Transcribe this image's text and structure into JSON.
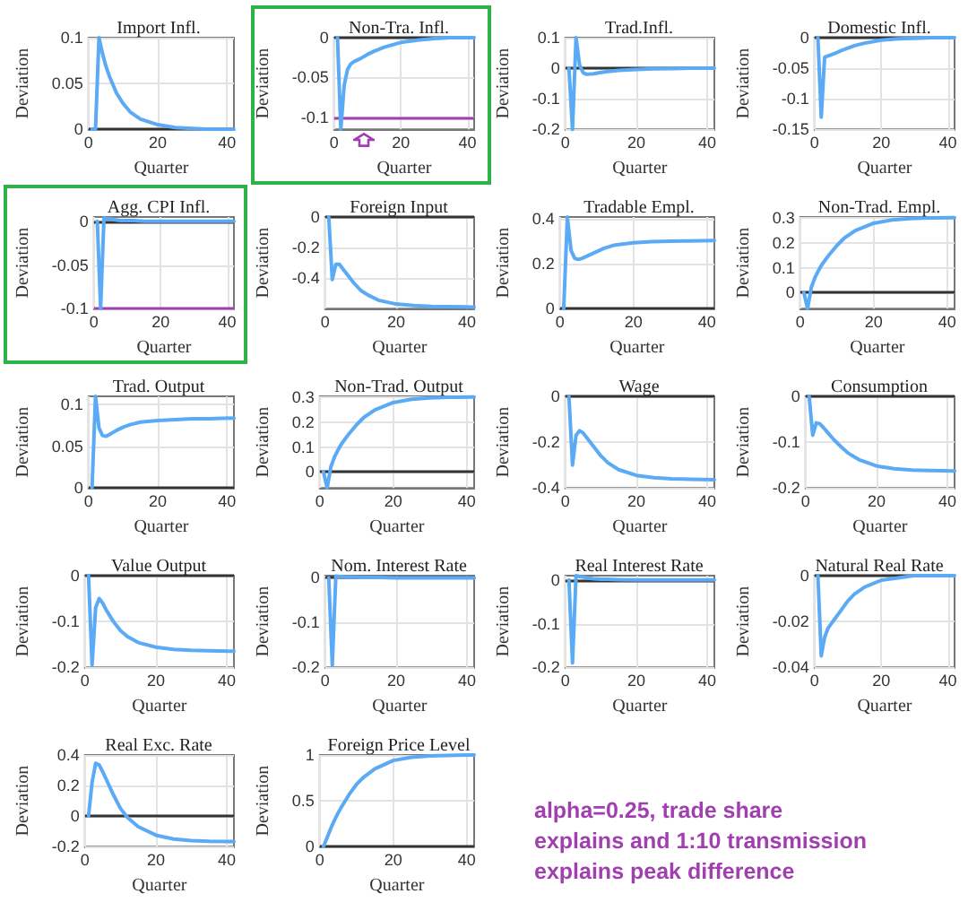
{
  "chart_data": [
    {
      "type": "line",
      "title": "Import Infl.",
      "xlabel": "Quarter",
      "ylabel": "Deviation",
      "x": [
        1,
        2,
        3,
        4,
        5,
        6,
        8,
        10,
        12,
        15,
        20,
        25,
        30,
        35,
        42
      ],
      "xlim": [
        0,
        42
      ],
      "xticks": [
        0,
        20,
        40
      ],
      "ylim": [
        0,
        0.1
      ],
      "yticks": [
        0,
        0.05,
        0.1
      ],
      "grid": true,
      "ref_lines": [
        {
          "axis": "y",
          "value": 0,
          "color": "#333333"
        }
      ],
      "series": [
        {
          "color": "#5aaaf6",
          "values": [
            0,
            0,
            0.1,
            0.083,
            0.069,
            0.058,
            0.04,
            0.028,
            0.019,
            0.011,
            0.005,
            0.002,
            0.001,
            0,
            0
          ]
        }
      ]
    },
    {
      "type": "line",
      "title": "Non-Tra. Infl.",
      "xlabel": "Quarter",
      "ylabel": "Deviation",
      "x": [
        1,
        2,
        3,
        4,
        5,
        6,
        8,
        10,
        12,
        15,
        20,
        25,
        30,
        35,
        42
      ],
      "xlim": [
        0,
        42
      ],
      "xticks": [
        0,
        20,
        40
      ],
      "ylim": [
        -0.115,
        0
      ],
      "yticks": [
        -0.1,
        -0.05,
        0
      ],
      "grid": true,
      "ref_lines": [
        {
          "axis": "y",
          "value": 0,
          "color": "#333333"
        },
        {
          "axis": "y",
          "value": -0.1,
          "color": "#a23fb0"
        }
      ],
      "series": [
        {
          "color": "#5aaaf6",
          "values": [
            0,
            -0.115,
            -0.06,
            -0.04,
            -0.033,
            -0.03,
            -0.026,
            -0.021,
            -0.017,
            -0.012,
            -0.006,
            -0.003,
            -0.001,
            0,
            0
          ]
        }
      ]
    },
    {
      "type": "line",
      "title": "Trad.Infl.",
      "xlabel": "Quarter",
      "ylabel": "Deviation",
      "x": [
        1,
        2,
        3,
        4,
        5,
        6,
        8,
        10,
        12,
        15,
        20,
        25,
        30,
        35,
        42
      ],
      "xlim": [
        0,
        42
      ],
      "xticks": [
        0,
        20,
        40
      ],
      "ylim": [
        -0.2,
        0.1
      ],
      "yticks": [
        -0.2,
        -0.1,
        0,
        0.1
      ],
      "grid": true,
      "ref_lines": [
        {
          "axis": "y",
          "value": 0,
          "color": "#333333"
        }
      ],
      "series": [
        {
          "color": "#5aaaf6",
          "values": [
            0,
            -0.2,
            0.1,
            0.01,
            -0.015,
            -0.02,
            -0.018,
            -0.014,
            -0.011,
            -0.007,
            -0.004,
            -0.002,
            -0.001,
            0,
            0
          ]
        }
      ]
    },
    {
      "type": "line",
      "title": "Domestic Infl.",
      "xlabel": "Quarter",
      "ylabel": "Deviation",
      "x": [
        1,
        2,
        3,
        4,
        5,
        6,
        8,
        10,
        12,
        15,
        20,
        25,
        30,
        35,
        42
      ],
      "xlim": [
        0,
        42
      ],
      "xticks": [
        0,
        20,
        40
      ],
      "ylim": [
        -0.15,
        0
      ],
      "yticks": [
        -0.15,
        -0.1,
        -0.05,
        0
      ],
      "grid": true,
      "ref_lines": [
        {
          "axis": "y",
          "value": 0,
          "color": "#333333"
        }
      ],
      "series": [
        {
          "color": "#5aaaf6",
          "values": [
            0,
            -0.13,
            -0.032,
            -0.03,
            -0.028,
            -0.026,
            -0.021,
            -0.017,
            -0.013,
            -0.009,
            -0.004,
            -0.002,
            -0.001,
            0,
            0
          ]
        }
      ]
    },
    {
      "type": "line",
      "title": "Agg. CPI Infl.",
      "xlabel": "Quarter",
      "ylabel": "Deviation",
      "x": [
        1,
        2,
        3,
        4,
        5,
        6,
        8,
        10,
        12,
        15,
        20,
        25,
        30,
        35,
        42
      ],
      "xlim": [
        0,
        42
      ],
      "xticks": [
        0,
        20,
        40
      ],
      "ylim": [
        -0.1,
        0.005
      ],
      "yticks": [
        -0.1,
        -0.05,
        0
      ],
      "grid": true,
      "ref_lines": [
        {
          "axis": "y",
          "value": 0,
          "color": "#333333"
        },
        {
          "axis": "y",
          "value": -0.1,
          "color": "#a23fb0"
        }
      ],
      "series": [
        {
          "color": "#5aaaf6",
          "values": [
            0,
            -0.1,
            0.004,
            0.003,
            0.003,
            0.002,
            0.001,
            0.001,
            0.001,
            0,
            0,
            0,
            0,
            0,
            0
          ]
        }
      ]
    },
    {
      "type": "line",
      "title": "Foreign Input",
      "xlabel": "Quarter",
      "ylabel": "Deviation",
      "x": [
        1,
        2,
        3,
        4,
        5,
        6,
        8,
        10,
        12,
        15,
        20,
        25,
        30,
        35,
        42
      ],
      "xlim": [
        0,
        42
      ],
      "xticks": [
        0,
        20,
        40
      ],
      "ylim": [
        -0.6,
        0
      ],
      "yticks": [
        -0.4,
        -0.2,
        0
      ],
      "grid": true,
      "ref_lines": [
        {
          "axis": "y",
          "value": 0,
          "color": "#333333"
        }
      ],
      "series": [
        {
          "color": "#5aaaf6",
          "values": [
            0,
            -0.41,
            -0.31,
            -0.31,
            -0.34,
            -0.37,
            -0.43,
            -0.48,
            -0.51,
            -0.545,
            -0.57,
            -0.58,
            -0.585,
            -0.587,
            -0.59
          ]
        }
      ]
    },
    {
      "type": "line",
      "title": "Tradable Empl.",
      "xlabel": "Quarter",
      "ylabel": "Deviation",
      "x": [
        1,
        2,
        3,
        4,
        5,
        6,
        8,
        10,
        12,
        15,
        20,
        25,
        30,
        35,
        42
      ],
      "xlim": [
        0,
        42
      ],
      "xticks": [
        0,
        20,
        40
      ],
      "ylim": [
        0,
        0.41
      ],
      "yticks": [
        0,
        0.2,
        0.4
      ],
      "grid": true,
      "ref_lines": [
        {
          "axis": "y",
          "value": 0,
          "color": "#333333"
        }
      ],
      "series": [
        {
          "color": "#5aaaf6",
          "values": [
            0,
            0.41,
            0.26,
            0.225,
            0.22,
            0.225,
            0.24,
            0.255,
            0.27,
            0.285,
            0.295,
            0.3,
            0.302,
            0.303,
            0.305
          ]
        }
      ]
    },
    {
      "type": "line",
      "title": "Non-Trad. Empl.",
      "xlabel": "Quarter",
      "ylabel": "Deviation",
      "x": [
        1,
        2,
        3,
        4,
        5,
        6,
        8,
        10,
        12,
        15,
        20,
        25,
        30,
        35,
        42
      ],
      "xlim": [
        0,
        42
      ],
      "xticks": [
        0,
        20,
        40
      ],
      "ylim": [
        -0.065,
        0.305
      ],
      "yticks": [
        0,
        0.1,
        0.2,
        0.3
      ],
      "grid": true,
      "ref_lines": [
        {
          "axis": "y",
          "value": 0,
          "color": "#333333"
        }
      ],
      "series": [
        {
          "color": "#5aaaf6",
          "values": [
            0,
            -0.065,
            0.02,
            0.06,
            0.09,
            0.115,
            0.155,
            0.19,
            0.22,
            0.25,
            0.28,
            0.293,
            0.299,
            0.301,
            0.302
          ]
        }
      ]
    },
    {
      "type": "line",
      "title": "Trad. Output",
      "xlabel": "Quarter",
      "ylabel": "Deviation",
      "x": [
        1,
        2,
        3,
        4,
        5,
        6,
        8,
        10,
        12,
        15,
        20,
        25,
        30,
        35,
        42
      ],
      "xlim": [
        0,
        42
      ],
      "xticks": [
        0,
        20,
        40
      ],
      "ylim": [
        0,
        0.11
      ],
      "yticks": [
        0,
        0.05,
        0.1
      ],
      "grid": true,
      "ref_lines": [
        {
          "axis": "y",
          "value": 0,
          "color": "#333333"
        }
      ],
      "series": [
        {
          "color": "#5aaaf6",
          "values": [
            0,
            0.11,
            0.072,
            0.063,
            0.062,
            0.064,
            0.069,
            0.073,
            0.076,
            0.079,
            0.081,
            0.082,
            0.083,
            0.083,
            0.084
          ]
        }
      ]
    },
    {
      "type": "line",
      "title": "Non-Trad. Output",
      "xlabel": "Quarter",
      "ylabel": "Deviation",
      "x": [
        1,
        2,
        3,
        4,
        5,
        6,
        8,
        10,
        12,
        15,
        20,
        25,
        30,
        35,
        42
      ],
      "xlim": [
        0,
        42
      ],
      "xticks": [
        0,
        20,
        40
      ],
      "ylim": [
        -0.065,
        0.305
      ],
      "yticks": [
        0,
        0.1,
        0.2,
        0.3
      ],
      "grid": true,
      "ref_lines": [
        {
          "axis": "y",
          "value": 0,
          "color": "#333333"
        }
      ],
      "series": [
        {
          "color": "#5aaaf6",
          "values": [
            0,
            -0.065,
            0.02,
            0.06,
            0.09,
            0.115,
            0.155,
            0.19,
            0.22,
            0.25,
            0.28,
            0.293,
            0.299,
            0.301,
            0.302
          ]
        }
      ]
    },
    {
      "type": "line",
      "title": "Wage",
      "xlabel": "Quarter",
      "ylabel": "Deviation",
      "x": [
        1,
        2,
        3,
        4,
        5,
        6,
        8,
        10,
        12,
        15,
        20,
        25,
        30,
        35,
        42
      ],
      "xlim": [
        0,
        42
      ],
      "xticks": [
        0,
        20,
        40
      ],
      "ylim": [
        -0.4,
        0
      ],
      "yticks": [
        -0.4,
        -0.2,
        0
      ],
      "grid": true,
      "ref_lines": [
        {
          "axis": "y",
          "value": 0,
          "color": "#333333"
        }
      ],
      "series": [
        {
          "color": "#5aaaf6",
          "values": [
            0,
            -0.3,
            -0.17,
            -0.15,
            -0.16,
            -0.18,
            -0.22,
            -0.26,
            -0.29,
            -0.32,
            -0.345,
            -0.355,
            -0.36,
            -0.362,
            -0.364
          ]
        }
      ]
    },
    {
      "type": "line",
      "title": "Consumption",
      "xlabel": "Quarter",
      "ylabel": "Deviation",
      "x": [
        1,
        2,
        3,
        4,
        5,
        6,
        8,
        10,
        12,
        15,
        20,
        25,
        30,
        35,
        42
      ],
      "xlim": [
        0,
        42
      ],
      "xticks": [
        0,
        20,
        40
      ],
      "ylim": [
        -0.2,
        0
      ],
      "yticks": [
        -0.2,
        -0.1,
        0
      ],
      "grid": true,
      "ref_lines": [
        {
          "axis": "y",
          "value": 0,
          "color": "#333333"
        }
      ],
      "series": [
        {
          "color": "#5aaaf6",
          "values": [
            0,
            -0.085,
            -0.058,
            -0.06,
            -0.068,
            -0.077,
            -0.095,
            -0.11,
            -0.124,
            -0.138,
            -0.152,
            -0.158,
            -0.161,
            -0.162,
            -0.163
          ]
        }
      ]
    },
    {
      "type": "line",
      "title": "Value Output",
      "xlabel": "Quarter",
      "ylabel": "Deviation",
      "x": [
        1,
        2,
        3,
        4,
        5,
        6,
        8,
        10,
        12,
        15,
        20,
        25,
        30,
        35,
        42
      ],
      "xlim": [
        0,
        42
      ],
      "xticks": [
        0,
        20,
        40
      ],
      "ylim": [
        -0.2,
        0
      ],
      "yticks": [
        -0.2,
        -0.1,
        0
      ],
      "grid": true,
      "ref_lines": [
        {
          "axis": "y",
          "value": 0,
          "color": "#333333"
        }
      ],
      "series": [
        {
          "color": "#5aaaf6",
          "values": [
            0,
            -0.195,
            -0.07,
            -0.05,
            -0.06,
            -0.075,
            -0.1,
            -0.12,
            -0.133,
            -0.146,
            -0.156,
            -0.161,
            -0.163,
            -0.164,
            -0.165
          ]
        }
      ]
    },
    {
      "type": "line",
      "title": "Nom. Interest Rate",
      "xlabel": "Quarter",
      "ylabel": "Deviation",
      "x": [
        1,
        2,
        3,
        4,
        5,
        6,
        8,
        10,
        12,
        15,
        20,
        25,
        30,
        35,
        42
      ],
      "xlim": [
        0,
        42
      ],
      "xticks": [
        0,
        20,
        40
      ],
      "ylim": [
        -0.2,
        0.005
      ],
      "yticks": [
        -0.2,
        -0.1,
        0
      ],
      "grid": true,
      "ref_lines": [
        {
          "axis": "y",
          "value": 0,
          "color": "#333333"
        }
      ],
      "series": [
        {
          "color": "#5aaaf6",
          "values": [
            0,
            -0.195,
            0.004,
            0.003,
            0.003,
            0.002,
            0.002,
            0.001,
            0.001,
            0.001,
            0,
            0,
            0,
            0,
            0
          ]
        }
      ]
    },
    {
      "type": "line",
      "title": "Real Interest Rate",
      "xlabel": "Quarter",
      "ylabel": "Deviation",
      "x": [
        1,
        2,
        3,
        4,
        5,
        6,
        8,
        10,
        12,
        15,
        20,
        25,
        30,
        35,
        42
      ],
      "xlim": [
        0,
        42
      ],
      "xticks": [
        0,
        20,
        40
      ],
      "ylim": [
        -0.2,
        0.01
      ],
      "yticks": [
        -0.2,
        -0.1,
        0
      ],
      "grid": true,
      "ref_lines": [
        {
          "axis": "y",
          "value": 0,
          "color": "#333333"
        }
      ],
      "series": [
        {
          "color": "#5aaaf6",
          "values": [
            0,
            -0.19,
            0.01,
            0.008,
            0.007,
            0.005,
            0.003,
            0.002,
            0.002,
            0.001,
            0,
            0,
            0,
            0,
            0
          ]
        }
      ]
    },
    {
      "type": "line",
      "title": "Natural Real Rate",
      "xlabel": "Quarter",
      "ylabel": "Deviation",
      "x": [
        1,
        2,
        3,
        4,
        5,
        6,
        8,
        10,
        12,
        15,
        20,
        25,
        30,
        35,
        42
      ],
      "xlim": [
        0,
        42
      ],
      "xticks": [
        0,
        20,
        40
      ],
      "ylim": [
        -0.04,
        0
      ],
      "yticks": [
        -0.04,
        -0.02,
        0
      ],
      "grid": true,
      "ref_lines": [
        {
          "axis": "y",
          "value": 0,
          "color": "#333333"
        }
      ],
      "series": [
        {
          "color": "#5aaaf6",
          "values": [
            0,
            -0.035,
            -0.027,
            -0.023,
            -0.021,
            -0.019,
            -0.015,
            -0.011,
            -0.008,
            -0.005,
            -0.002,
            -0.001,
            0,
            0,
            0
          ]
        }
      ]
    },
    {
      "type": "line",
      "title": "Real Exc. Rate",
      "xlabel": "Quarter",
      "ylabel": "Deviation",
      "x": [
        1,
        2,
        3,
        4,
        5,
        6,
        8,
        10,
        12,
        15,
        20,
        25,
        30,
        35,
        42
      ],
      "xlim": [
        0,
        42
      ],
      "xticks": [
        0,
        20,
        40
      ],
      "ylim": [
        -0.2,
        0.4
      ],
      "yticks": [
        -0.2,
        0,
        0.2,
        0.4
      ],
      "grid": true,
      "ref_lines": [
        {
          "axis": "y",
          "value": 0,
          "color": "#333333"
        }
      ],
      "series": [
        {
          "color": "#5aaaf6",
          "values": [
            0,
            0.22,
            0.345,
            0.335,
            0.29,
            0.24,
            0.14,
            0.05,
            -0.01,
            -0.07,
            -0.125,
            -0.15,
            -0.16,
            -0.165,
            -0.167
          ]
        }
      ]
    },
    {
      "type": "line",
      "title": "Foreign Price Level",
      "xlabel": "Quarter",
      "ylabel": "Deviation",
      "x": [
        1,
        2,
        3,
        4,
        5,
        6,
        8,
        10,
        12,
        15,
        20,
        25,
        30,
        35,
        42
      ],
      "xlim": [
        0,
        42
      ],
      "xticks": [
        0,
        20,
        40
      ],
      "ylim": [
        0,
        1
      ],
      "yticks": [
        0,
        0.5,
        1
      ],
      "grid": true,
      "ref_lines": [
        {
          "axis": "y",
          "value": 0,
          "color": "#333333"
        }
      ],
      "series": [
        {
          "color": "#5aaaf6",
          "values": [
            0,
            0.1,
            0.2,
            0.29,
            0.37,
            0.44,
            0.57,
            0.68,
            0.76,
            0.85,
            0.94,
            0.975,
            0.99,
            0.995,
            1
          ]
        }
      ]
    },
    {
      "type": "other",
      "annotations": [
        "alpha=0.25, trade share",
        "explains and 1:10 transmission",
        "explains peak difference"
      ]
    }
  ]
}
